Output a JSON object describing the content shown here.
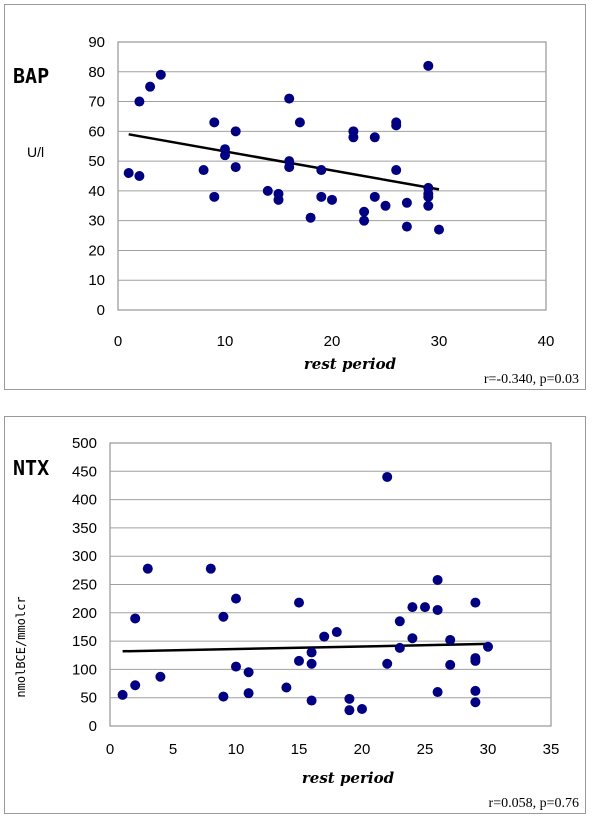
{
  "chart_data": [
    {
      "type": "scatter",
      "title": "BAP",
      "xlabel": "rest period",
      "ylabel": "U/l",
      "xlim": [
        0,
        40
      ],
      "ylim": [
        0,
        90
      ],
      "xticks": [
        0,
        10,
        20,
        30,
        40
      ],
      "yticks": [
        0,
        10,
        20,
        30,
        40,
        50,
        60,
        70,
        80,
        90
      ],
      "grid": "horizontal",
      "plot_background": "#ffffff",
      "marker_color": "#000080",
      "line_color": "#000000",
      "annotation": "r=-0.340, p=0.03",
      "points": [
        [
          1,
          46
        ],
        [
          2,
          70
        ],
        [
          2,
          45
        ],
        [
          3,
          75
        ],
        [
          4,
          79
        ],
        [
          8,
          47
        ],
        [
          9,
          63
        ],
        [
          9,
          38
        ],
        [
          10,
          54
        ],
        [
          10,
          52
        ],
        [
          11,
          60
        ],
        [
          11,
          48
        ],
        [
          14,
          40
        ],
        [
          15,
          39
        ],
        [
          15,
          37
        ],
        [
          16,
          71
        ],
        [
          16,
          50
        ],
        [
          16,
          48
        ],
        [
          17,
          63
        ],
        [
          18,
          31
        ],
        [
          19,
          47
        ],
        [
          19,
          38
        ],
        [
          20,
          37
        ],
        [
          22,
          60
        ],
        [
          22,
          58
        ],
        [
          23,
          33
        ],
        [
          23,
          30
        ],
        [
          24,
          58
        ],
        [
          24,
          38
        ],
        [
          25,
          35
        ],
        [
          26,
          63
        ],
        [
          26,
          62
        ],
        [
          26,
          47
        ],
        [
          27,
          36
        ],
        [
          27,
          28
        ],
        [
          29,
          82
        ],
        [
          29,
          41
        ],
        [
          29,
          39
        ],
        [
          29,
          38
        ],
        [
          29,
          35
        ],
        [
          30,
          27
        ]
      ],
      "trendline": [
        [
          1,
          59
        ],
        [
          30,
          40.5
        ]
      ]
    },
    {
      "type": "scatter",
      "title": "NTX",
      "xlabel": "rest period",
      "ylabel": "nmolBCE/mmolcr",
      "xlim": [
        0,
        35
      ],
      "ylim": [
        0,
        500
      ],
      "xticks": [
        0,
        5,
        10,
        15,
        20,
        25,
        30,
        35
      ],
      "yticks": [
        0,
        50,
        100,
        150,
        200,
        250,
        300,
        350,
        400,
        450,
        500
      ],
      "grid": "horizontal",
      "plot_background": "#ffffff",
      "marker_color": "#000080",
      "line_color": "#000000",
      "annotation": "r=0.058, p=0.76",
      "points": [
        [
          1,
          55
        ],
        [
          2,
          190
        ],
        [
          2,
          72
        ],
        [
          3,
          278
        ],
        [
          4,
          87
        ],
        [
          8,
          278
        ],
        [
          9,
          193
        ],
        [
          9,
          52
        ],
        [
          10,
          225
        ],
        [
          10,
          105
        ],
        [
          11,
          95
        ],
        [
          11,
          58
        ],
        [
          14,
          68
        ],
        [
          15,
          218
        ],
        [
          15,
          115
        ],
        [
          16,
          130
        ],
        [
          16,
          110
        ],
        [
          16,
          45
        ],
        [
          17,
          158
        ],
        [
          18,
          166
        ],
        [
          19,
          48
        ],
        [
          19,
          28
        ],
        [
          20,
          30
        ],
        [
          22,
          440
        ],
        [
          22,
          110
        ],
        [
          23,
          185
        ],
        [
          23,
          138
        ],
        [
          24,
          210
        ],
        [
          24,
          155
        ],
        [
          25,
          210
        ],
        [
          26,
          258
        ],
        [
          26,
          205
        ],
        [
          26,
          60
        ],
        [
          27,
          152
        ],
        [
          27,
          108
        ],
        [
          29,
          218
        ],
        [
          29,
          120
        ],
        [
          29,
          115
        ],
        [
          29,
          62
        ],
        [
          29,
          42
        ],
        [
          30,
          140
        ]
      ],
      "trendline": [
        [
          1,
          132
        ],
        [
          30,
          145
        ]
      ]
    }
  ]
}
